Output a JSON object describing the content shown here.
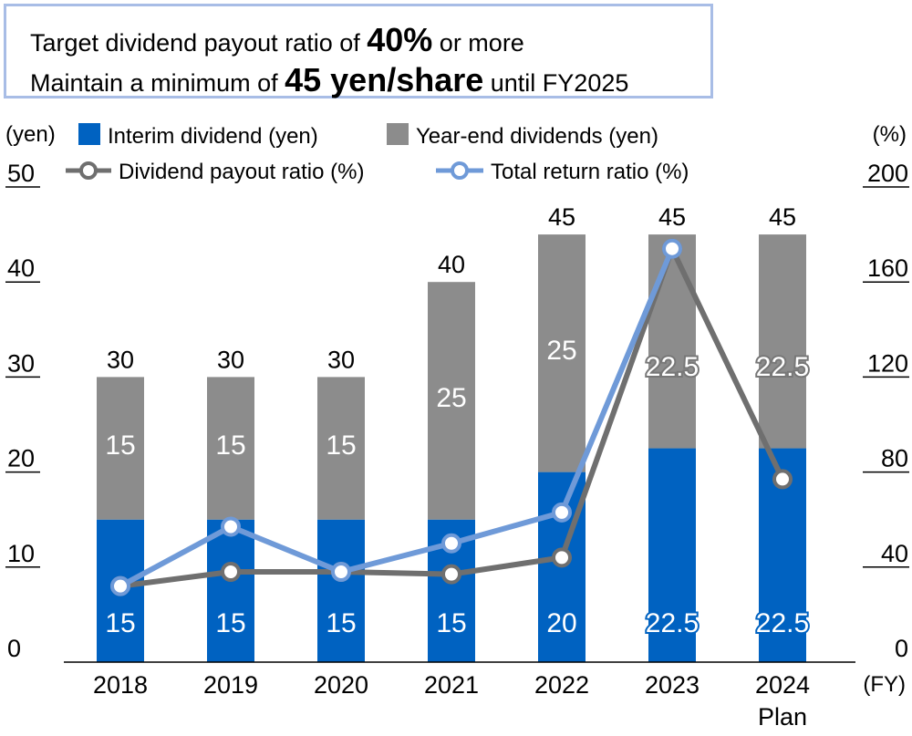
{
  "target": {
    "line1_pre": "Target dividend payout ratio of ",
    "line1_bold": "40%",
    "line1_post": " or more",
    "line2_pre": "Maintain a minimum of ",
    "line2_bold": "45 yen/share",
    "line2_post": " until FY2025"
  },
  "chart_data": {
    "type": "bar",
    "stacked": true,
    "categories": [
      "2018",
      "2019",
      "2020",
      "2021",
      "2022",
      "2023",
      "2024\nPlan"
    ],
    "left_axis": {
      "unit": "(yen)",
      "min": 0,
      "max": 50,
      "ticks": [
        0,
        10,
        20,
        30,
        40,
        50
      ]
    },
    "right_axis": {
      "unit": "(%)",
      "min": 0,
      "max": 200,
      "ticks": [
        0,
        40,
        80,
        120,
        160,
        200
      ]
    },
    "x_unit": "(FY)",
    "series": [
      {
        "name": "Interim dividend (yen)",
        "type": "bar",
        "axis": "left",
        "color": "#0062c1",
        "values": [
          15,
          15,
          15,
          15,
          20,
          22.5,
          22.5
        ],
        "labels": [
          "15",
          "15",
          "15",
          "15",
          "20",
          "22.5",
          "22.5"
        ]
      },
      {
        "name": "Year-end dividends (yen)",
        "type": "bar",
        "axis": "left",
        "color": "#8c8c8c",
        "values": [
          15,
          15,
          15,
          25,
          25,
          22.5,
          22.5
        ],
        "labels": [
          "15",
          "15",
          "15",
          "25",
          "25",
          "22.5",
          "22.5"
        ]
      },
      {
        "name": "Dividend payout ratio (%)",
        "type": "line",
        "axis": "right",
        "color": "#6f6f6f",
        "values": [
          32,
          38,
          38,
          37,
          44,
          174,
          77
        ]
      },
      {
        "name": "Total return ratio (%)",
        "type": "line",
        "axis": "right",
        "color": "#6f9ad8",
        "values": [
          32,
          57,
          38,
          50,
          63,
          174,
          null
        ]
      }
    ],
    "totals": [
      "30",
      "30",
      "30",
      "40",
      "45",
      "45",
      "45"
    ]
  }
}
